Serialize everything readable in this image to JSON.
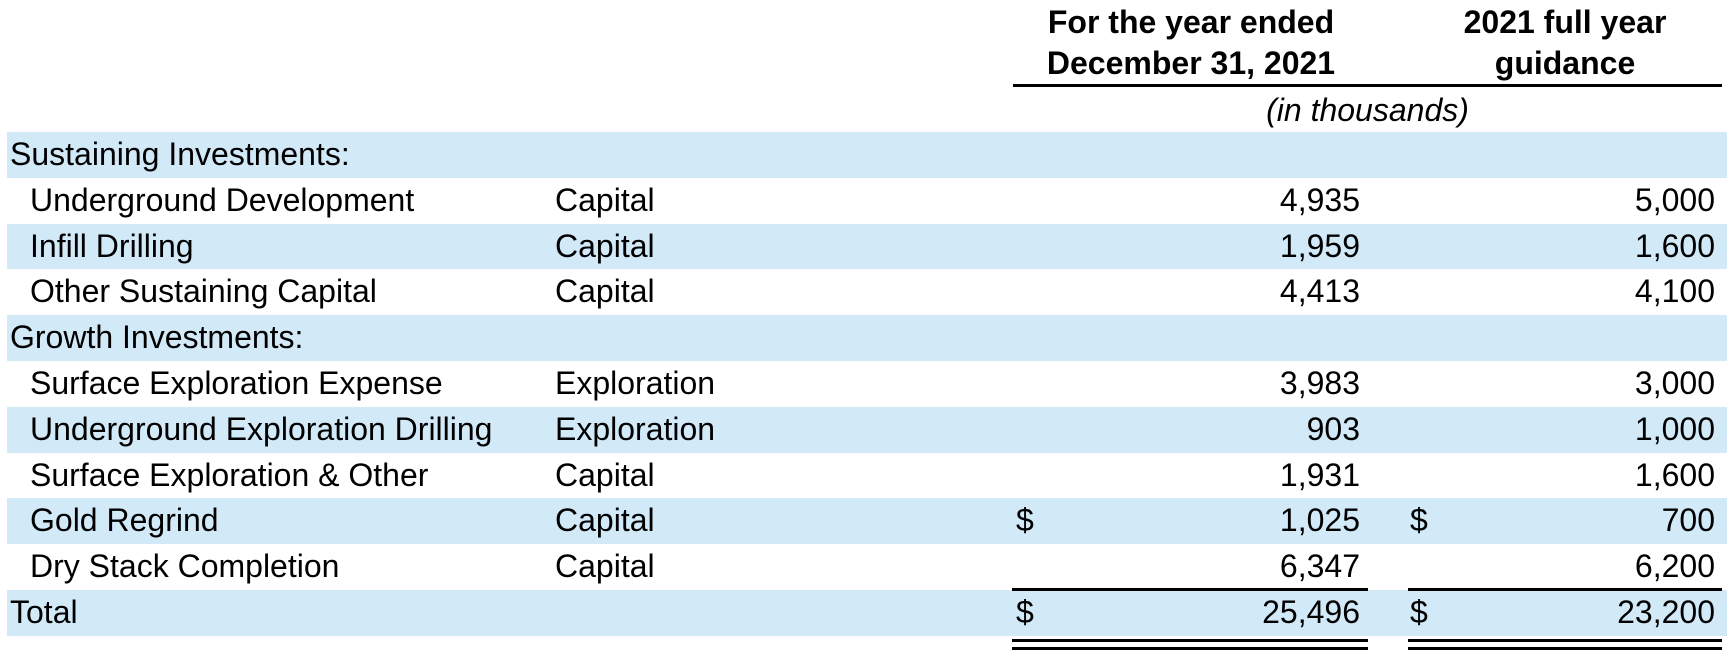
{
  "table": {
    "header": {
      "period_col": {
        "line1": "For the year ended",
        "line2": "December 31, 2021"
      },
      "guidance_col": {
        "line1": "2021 full year",
        "line2": "guidance"
      },
      "units_note": "(in thousands)"
    },
    "columns": {
      "actual_label": "For the year ended December 31, 2021",
      "guidance_label": "2021 full year guidance"
    },
    "rows": [
      {
        "label": "Sustaining Investments:",
        "type": "",
        "d1": "",
        "actual": "",
        "d2": "",
        "guidance": ""
      },
      {
        "label": "Underground Development",
        "type": "Capital",
        "d1": "",
        "actual": "4,935",
        "d2": "",
        "guidance": "5,000"
      },
      {
        "label": "Infill Drilling",
        "type": "Capital",
        "d1": "",
        "actual": "1,959",
        "d2": "",
        "guidance": "1,600"
      },
      {
        "label": "Other Sustaining Capital",
        "type": "Capital",
        "d1": "",
        "actual": "4,413",
        "d2": "",
        "guidance": "4,100"
      },
      {
        "label": "Growth Investments:",
        "type": "",
        "d1": "",
        "actual": "",
        "d2": "",
        "guidance": ""
      },
      {
        "label": "Surface Exploration Expense",
        "type": "Exploration",
        "d1": "",
        "actual": "3,983",
        "d2": "",
        "guidance": "3,000"
      },
      {
        "label": "Underground Exploration Drilling",
        "type": "Exploration",
        "d1": "",
        "actual": "903",
        "d2": "",
        "guidance": "1,000"
      },
      {
        "label": "Surface Exploration & Other",
        "type": "Capital",
        "d1": "",
        "actual": "1,931",
        "d2": "",
        "guidance": "1,600"
      },
      {
        "label": "Gold Regrind",
        "type": "Capital",
        "d1": "$",
        "actual": "1,025",
        "d2": "$",
        "guidance": "700"
      },
      {
        "label": "Dry Stack Completion",
        "type": "Capital",
        "d1": "",
        "actual": "6,347",
        "d2": "",
        "guidance": "6,200"
      },
      {
        "label": "Total",
        "type": "",
        "d1": "$",
        "actual": "25,496",
        "d2": "$",
        "guidance": "23,200"
      }
    ],
    "colors": {
      "row_shade": "#d2e9f8",
      "text": "#000000",
      "rule": "#000000"
    }
  }
}
